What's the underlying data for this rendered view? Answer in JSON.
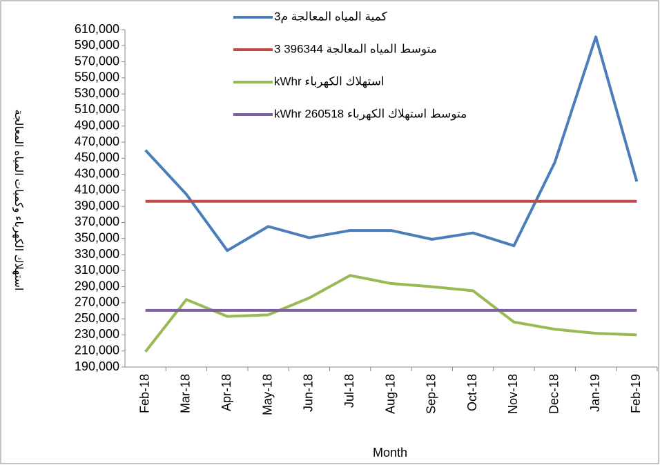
{
  "chart_data": {
    "type": "line",
    "x_label": "Month",
    "y_label": "استهلاك الكهرباء وكميات المياه المعالجة",
    "categories": [
      "Feb-18",
      "Mar-18",
      "Apr-18",
      "May-18",
      "Jun-18",
      "Jul-18",
      "Aug-18",
      "Sep-18",
      "Oct-18",
      "Nov-18",
      "Dec-18",
      "Jan-19",
      "Feb-19"
    ],
    "series": [
      {
        "name": "كمية المياه المعالجة م3",
        "color": "#4a7ebb",
        "values": [
          460000,
          405000,
          335000,
          365000,
          351000,
          360000,
          360000,
          349000,
          357000,
          341000,
          445000,
          601000,
          421000
        ]
      },
      {
        "name": "متوسط المياه المعالجة 396344 3",
        "color": "#be4b48",
        "values": [
          396344,
          396344,
          396344,
          396344,
          396344,
          396344,
          396344,
          396344,
          396344,
          396344,
          396344,
          396344,
          396344
        ]
      },
      {
        "name": "استهلاك الكهرباء kWhr",
        "color": "#98b954",
        "values": [
          209000,
          274000,
          253000,
          255000,
          276000,
          304000,
          294000,
          290000,
          285000,
          246000,
          237000,
          232000,
          230000
        ]
      },
      {
        "name": "متوسط استهلاك الكهرباء 260518 kWhr",
        "color": "#7d60a0",
        "values": [
          260518,
          260518,
          260518,
          260518,
          260518,
          260518,
          260518,
          260518,
          260518,
          260518,
          260518,
          260518,
          260518
        ]
      }
    ],
    "ylim": [
      190000,
      610000
    ],
    "yticks": [
      {
        "value": 190000,
        "label": "190,000"
      },
      {
        "value": 210000,
        "label": "210,000"
      },
      {
        "value": 230000,
        "label": "230,000"
      },
      {
        "value": 250000,
        "label": "250,000"
      },
      {
        "value": 270000,
        "label": "270,000"
      },
      {
        "value": 290000,
        "label": "290,000"
      },
      {
        "value": 310000,
        "label": "310,000"
      },
      {
        "value": 330000,
        "label": "330,000"
      },
      {
        "value": 350000,
        "label": "350,000"
      },
      {
        "value": 370000,
        "label": "370,000"
      },
      {
        "value": 390000,
        "label": "390,000"
      },
      {
        "value": 410000,
        "label": "410,000"
      },
      {
        "value": 430000,
        "label": "430,000"
      },
      {
        "value": 450000,
        "label": "450,000"
      },
      {
        "value": 470000,
        "label": "470,000"
      },
      {
        "value": 490000,
        "label": "490,000"
      },
      {
        "value": 510000,
        "label": "510,000"
      },
      {
        "value": 530000,
        "label": "530,000"
      },
      {
        "value": 550000,
        "label": "550,000"
      },
      {
        "value": 570000,
        "label": "570,000"
      },
      {
        "value": 590000,
        "label": "590,000"
      },
      {
        "value": 610000,
        "label": "610,000"
      }
    ],
    "grid": false
  }
}
